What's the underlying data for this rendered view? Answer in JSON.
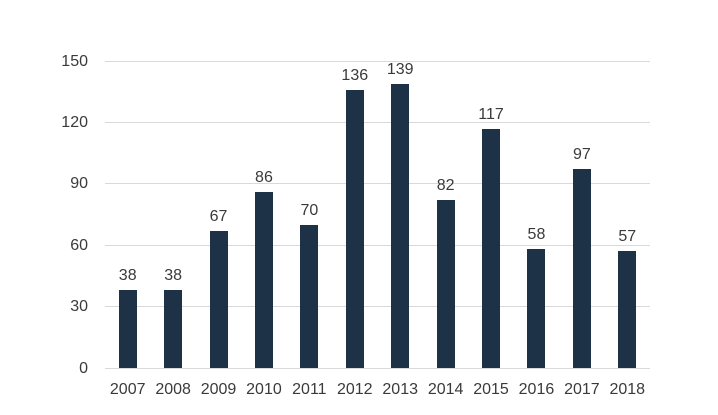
{
  "chart_data": {
    "type": "bar",
    "title": "",
    "xlabel": "",
    "ylabel": "",
    "categories": [
      "2007",
      "2008",
      "2009",
      "2010",
      "2011",
      "2012",
      "2013",
      "2014",
      "2015",
      "2016",
      "2017",
      "2018"
    ],
    "values": [
      38,
      38,
      67,
      86,
      70,
      136,
      139,
      82,
      117,
      58,
      97,
      57
    ],
    "yticks": [
      0,
      30,
      60,
      90,
      120,
      150
    ],
    "ylim": [
      0,
      150
    ],
    "grid": true,
    "legend": false,
    "data_labels": true,
    "colors": {
      "bar": "#1d3147",
      "gridline": "#d9d9d9",
      "axis_text": "#3a3a3a",
      "data_label_text": "#3a3a3a",
      "background": "#ffffff"
    }
  }
}
